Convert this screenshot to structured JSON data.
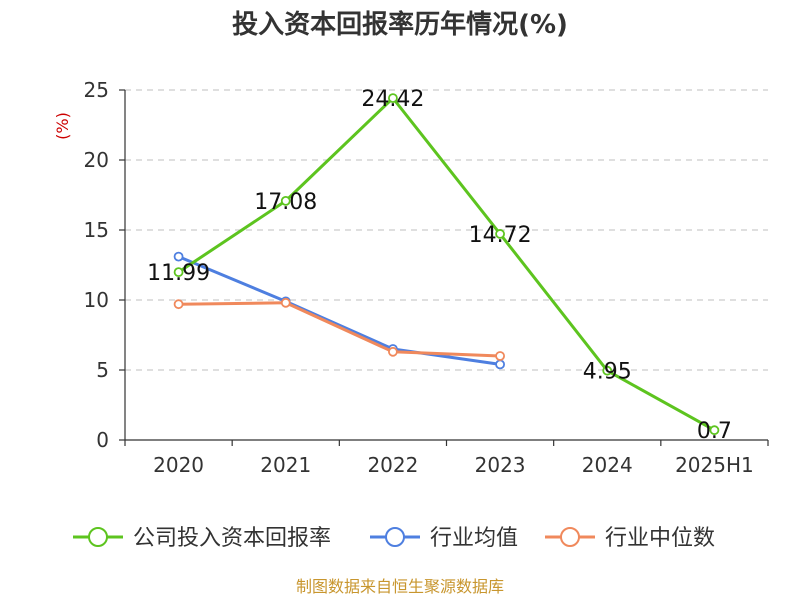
{
  "chart_data": {
    "type": "line",
    "title": "投入资本回报率历年情况(%)",
    "ylabel": "(%)",
    "ylim": [
      0,
      25
    ],
    "yticks": [
      0,
      5,
      10,
      15,
      20,
      25
    ],
    "categories": [
      "2020",
      "2021",
      "2022",
      "2023",
      "2024",
      "2025H1"
    ],
    "grid": true,
    "legend_position": "bottom",
    "series": [
      {
        "name": "公司投入资本回报率",
        "color": "#5dc41f",
        "values": [
          11.99,
          17.08,
          24.42,
          14.72,
          4.95,
          0.7
        ],
        "labels": [
          "11.99",
          "17.08",
          "24.42",
          "14.72",
          "4.95",
          "0.7"
        ]
      },
      {
        "name": "行业均值",
        "color": "#4e7fe0",
        "values": [
          13.1,
          9.9,
          6.5,
          5.4,
          null,
          null
        ]
      },
      {
        "name": "行业中位数",
        "color": "#f0895c",
        "values": [
          9.7,
          9.8,
          6.3,
          6.0,
          null,
          null
        ]
      }
    ]
  },
  "source": "制图数据来自恒生聚源数据库"
}
